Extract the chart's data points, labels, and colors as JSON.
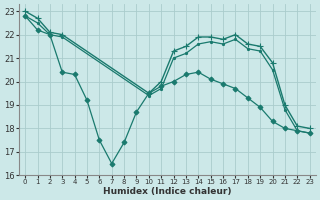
{
  "background_color": "#cce8e8",
  "grid_color": "#aacccc",
  "line_color": "#1a7a6e",
  "xlabel": "Humidex (Indice chaleur)",
  "xlim": [
    -0.5,
    23.5
  ],
  "ylim": [
    16,
    23.3
  ],
  "yticks": [
    16,
    17,
    18,
    19,
    20,
    21,
    22,
    23
  ],
  "xticks": [
    0,
    1,
    2,
    3,
    4,
    5,
    6,
    7,
    8,
    9,
    10,
    11,
    12,
    13,
    14,
    15,
    16,
    17,
    18,
    19,
    20,
    21,
    22,
    23
  ],
  "series": [
    {
      "x": [
        0,
        1,
        2,
        3,
        10,
        11,
        12,
        13,
        14,
        15,
        16,
        17,
        18,
        19,
        20,
        21,
        22,
        23
      ],
      "y": [
        23.0,
        22.7,
        22.1,
        22.0,
        19.5,
        20.0,
        21.3,
        21.5,
        21.9,
        21.9,
        21.8,
        22.0,
        21.6,
        21.5,
        20.8,
        19.0,
        18.1,
        18.0
      ],
      "marker": "+",
      "markersize": 4,
      "linewidth": 1.0
    },
    {
      "x": [
        0,
        1,
        2,
        3,
        10,
        11,
        12,
        13,
        14,
        15,
        16,
        17,
        18,
        19,
        20,
        21,
        22,
        23
      ],
      "y": [
        22.8,
        22.5,
        22.0,
        21.9,
        19.4,
        19.7,
        21.0,
        21.2,
        21.6,
        21.7,
        21.6,
        21.8,
        21.4,
        21.3,
        20.5,
        18.8,
        17.9,
        17.8
      ],
      "marker": ".",
      "markersize": 3,
      "linewidth": 0.9
    },
    {
      "x": [
        0,
        1,
        2,
        3,
        4,
        5,
        6,
        7,
        8,
        9,
        10,
        11,
        12,
        13,
        14,
        15,
        16,
        17,
        18,
        19,
        20,
        21,
        22,
        23
      ],
      "y": [
        22.8,
        22.2,
        22.0,
        20.4,
        20.3,
        19.2,
        17.5,
        16.5,
        17.4,
        18.7,
        19.5,
        19.8,
        20.0,
        20.3,
        20.4,
        20.1,
        19.9,
        19.7,
        19.3,
        18.9,
        18.3,
        18.0,
        17.9,
        17.8
      ],
      "marker": "D",
      "markersize": 2.5,
      "linewidth": 0.9
    }
  ]
}
